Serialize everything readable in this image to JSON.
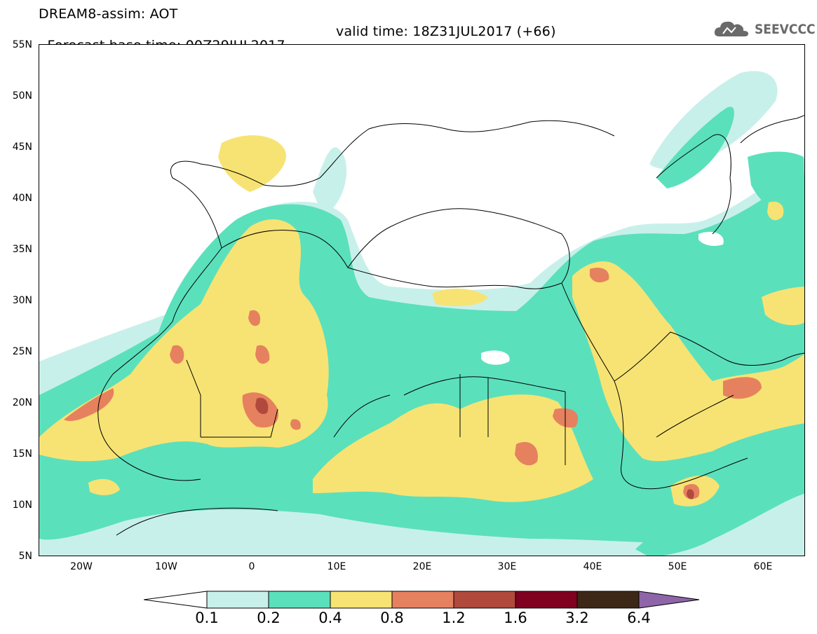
{
  "header": {
    "title": "DREAM8-assim: AOT",
    "base_time": "Forecast base time: 00Z29JUL2017",
    "valid_time": "valid time: 18Z31JUL2017 (+66)",
    "logo_text": "SEEVCCC"
  },
  "map": {
    "lat_ticks": [
      "55N",
      "50N",
      "45N",
      "40N",
      "35N",
      "30N",
      "25N",
      "20N",
      "15N",
      "10N",
      "5N"
    ],
    "lon_ticks": [
      "20W",
      "10W",
      "0",
      "10E",
      "20E",
      "30E",
      "40E",
      "50E",
      "60E"
    ],
    "lon_range": [
      -25,
      65
    ],
    "lat_range": [
      5,
      55
    ]
  },
  "colorbar": {
    "labels": [
      "0.1",
      "0.2",
      "0.4",
      "0.8",
      "1.2",
      "1.6",
      "3.2",
      "6.4"
    ],
    "colors": [
      "#c8f0ea",
      "#5be0bc",
      "#f7e373",
      "#e6815f",
      "#b04a3c",
      "#800020",
      "#3d2716",
      "#8e65a8"
    ],
    "left_color": "#ffffff"
  }
}
